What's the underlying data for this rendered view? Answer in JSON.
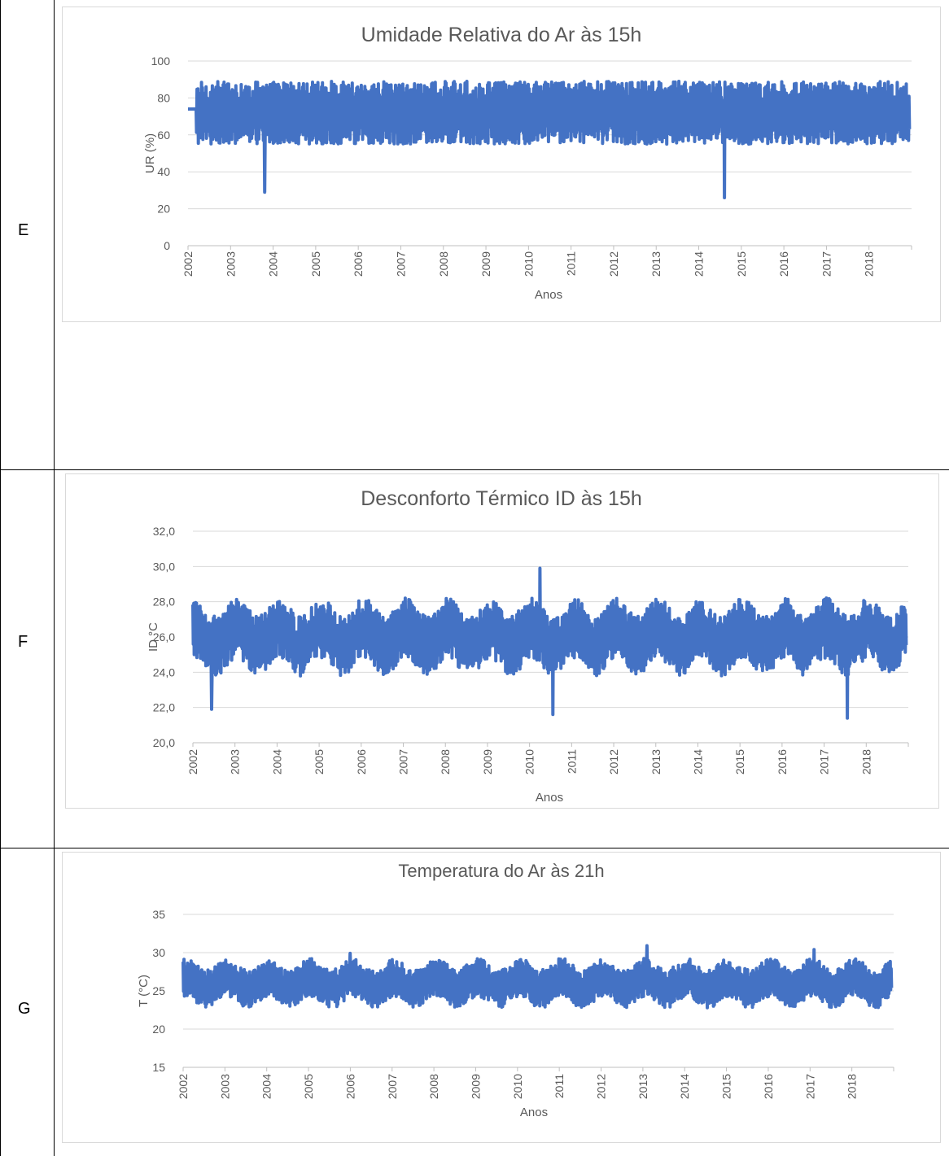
{
  "rows": [
    {
      "label": "E"
    },
    {
      "label": "F"
    },
    {
      "label": "G"
    }
  ],
  "chart_data": [
    {
      "type": "line",
      "title": "Umidade Relativa do Ar às 15h",
      "xlabel": "Anos",
      "ylabel": "UR (%)",
      "ylim": [
        0,
        100
      ],
      "yticks": [
        "0",
        "20",
        "40",
        "60",
        "80",
        "100"
      ],
      "xticks": [
        "2002",
        "2003",
        "2004",
        "2005",
        "2006",
        "2007",
        "2008",
        "2009",
        "2010",
        "2011",
        "2012",
        "2013",
        "2014",
        "2015",
        "2016",
        "2017",
        "2018"
      ],
      "xlim": [
        2002.0,
        2019.0
      ],
      "grid": true,
      "color": "#4472c4",
      "series": [
        {
          "values_summary": {
            "typical_low": 62,
            "typical_high": 95,
            "mean": 72
          }
        }
      ],
      "annotations_min": [
        {
          "x": 2003.8,
          "y": 29
        },
        {
          "x": 2014.6,
          "y": 26
        }
      ],
      "band": {
        "low": 58,
        "high": 92,
        "mean": 72
      }
    },
    {
      "type": "line",
      "title": "Desconforto Térmico ID às 15h",
      "xlabel": "Anos",
      "ylabel": "ID °C",
      "ylim": [
        20.0,
        32.0
      ],
      "yticks": [
        "20,0",
        "22,0",
        "24,0",
        "26,0",
        "28,0",
        "30,0",
        "32,0"
      ],
      "xticks": [
        "2002",
        "2003",
        "2004",
        "2005",
        "2006",
        "2007",
        "2008",
        "2009",
        "2010",
        "2011",
        "2012",
        "2013",
        "2014",
        "2015",
        "2016",
        "2017",
        "2018"
      ],
      "xlim": [
        2002.0,
        2019.0
      ],
      "grid": true,
      "color": "#4472c4",
      "series": [
        {
          "values_summary": {
            "typical_low": 24.5,
            "typical_high": 27.8,
            "mean": 26.2
          }
        }
      ],
      "extremes": [
        {
          "x": 2010.25,
          "y": 29.9
        },
        {
          "x": 2017.55,
          "y": 21.4
        },
        {
          "x": 2010.55,
          "y": 21.6
        },
        {
          "x": 2002.45,
          "y": 21.9
        }
      ],
      "band": {
        "low": 24.2,
        "high": 27.6,
        "mean": 26.0
      }
    },
    {
      "type": "line",
      "title": "Temperatura do Ar às 21h",
      "xlabel": "Anos",
      "ylabel": "T (°C)",
      "ylim": [
        15,
        35
      ],
      "yticks": [
        "15",
        "20",
        "25",
        "30",
        "35"
      ],
      "xticks": [
        "2002",
        "2003",
        "2004",
        "2005",
        "2006",
        "2007",
        "2008",
        "2009",
        "2010",
        "2011",
        "2012",
        "2013",
        "2014",
        "2015",
        "2016",
        "2017",
        "2018"
      ],
      "xlim": [
        2002.0,
        2019.0
      ],
      "grid": true,
      "color": "#4472c4",
      "series": [
        {
          "values_summary": {
            "typical_low": 23.5,
            "typical_high": 28.5,
            "mean": 26
          }
        }
      ],
      "extremes": [
        {
          "x": 2013.1,
          "y": 30.9
        },
        {
          "x": 2017.1,
          "y": 30.4
        },
        {
          "x": 2006.0,
          "y": 29.9
        }
      ],
      "band": {
        "low": 23.2,
        "high": 28.2,
        "mean": 26.0
      }
    }
  ]
}
